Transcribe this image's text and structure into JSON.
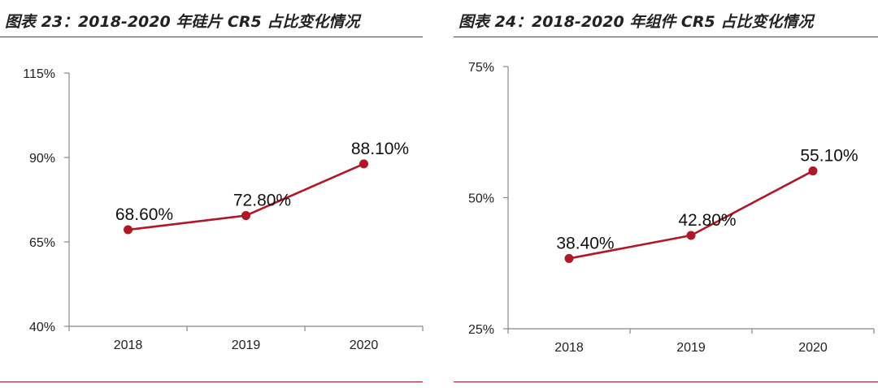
{
  "charts": [
    {
      "title": "图表 23：2018-2020 年硅片 CR5 占比变化情况",
      "chart_data": {
        "type": "line",
        "categories": [
          "2018",
          "2019",
          "2020"
        ],
        "series": [
          {
            "values": [
              68.6,
              72.8,
              88.1
            ],
            "color": "#b0182a"
          }
        ],
        "data_labels": [
          "68.60%",
          "72.80%",
          "88.10%"
        ],
        "ylim": [
          40,
          115
        ],
        "yticks": [
          40,
          65,
          90,
          115
        ],
        "ytick_labels": [
          "40%",
          "65%",
          "90%",
          "115%"
        ],
        "xlabel": "",
        "ylabel": "",
        "grid": false,
        "legend": "none"
      }
    },
    {
      "title": "图表 24：2018-2020 年组件 CR5 占比变化情况",
      "chart_data": {
        "type": "line",
        "categories": [
          "2018",
          "2019",
          "2020"
        ],
        "series": [
          {
            "values": [
              38.4,
              42.8,
              55.1
            ],
            "color": "#b0182a"
          }
        ],
        "data_labels": [
          "38.40%",
          "42.80%",
          "55.10%"
        ],
        "ylim": [
          25,
          75
        ],
        "yticks": [
          25,
          50,
          75
        ],
        "ytick_labels": [
          "25%",
          "50%",
          "75%"
        ],
        "xlabel": "",
        "ylabel": "",
        "grid": false,
        "legend": "none"
      }
    }
  ]
}
